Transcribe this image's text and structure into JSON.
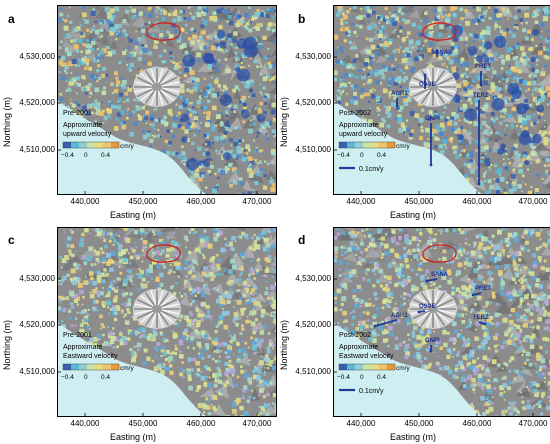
{
  "panels": [
    {
      "letter": "a",
      "period": "Pre-2001",
      "desc1": "Approximate",
      "desc2": "upward velocity",
      "kind": "up",
      "show_stations": false,
      "show_scale": false
    },
    {
      "letter": "b",
      "period": "Post-2002",
      "desc1": "Approximate",
      "desc2": "upward velocity",
      "kind": "up",
      "show_stations": true,
      "show_scale": true
    },
    {
      "letter": "c",
      "period": "Pre-2001",
      "desc1": "Approximate",
      "desc2": "Eastward velocity",
      "kind": "east",
      "show_stations": false,
      "show_scale": false
    },
    {
      "letter": "d",
      "period": "Post-2002",
      "desc1": "Approximate",
      "desc2": "Eastward velocity",
      "kind": "east",
      "show_stations": true,
      "show_scale": true
    }
  ],
  "axes": {
    "ylabel": "Northing (m)",
    "xlabel": "Easting (m)",
    "yticks": [
      "4,530,000",
      "4,520,000",
      "4,510,000"
    ],
    "xticks": [
      "440,000",
      "450,000",
      "460,000",
      "470,000"
    ]
  },
  "colorbar": {
    "unit": "cm/y",
    "ticks": [
      "−0.4",
      "0",
      "0.4"
    ]
  },
  "scale_label": "0.1cm/y",
  "stations": {
    "up": [
      "SANA",
      "PRET",
      "OSVE",
      "AGR1",
      "TERZ",
      "ONPI"
    ],
    "east": [
      "SANA",
      "PRET",
      "OSVE",
      "AGR1",
      "TERZ",
      "ONPI"
    ]
  },
  "colors": {
    "sea": "#cfeef2",
    "land": "#8c8c8c",
    "outline": "#d02020",
    "arrow": "#1e3a9a"
  }
}
